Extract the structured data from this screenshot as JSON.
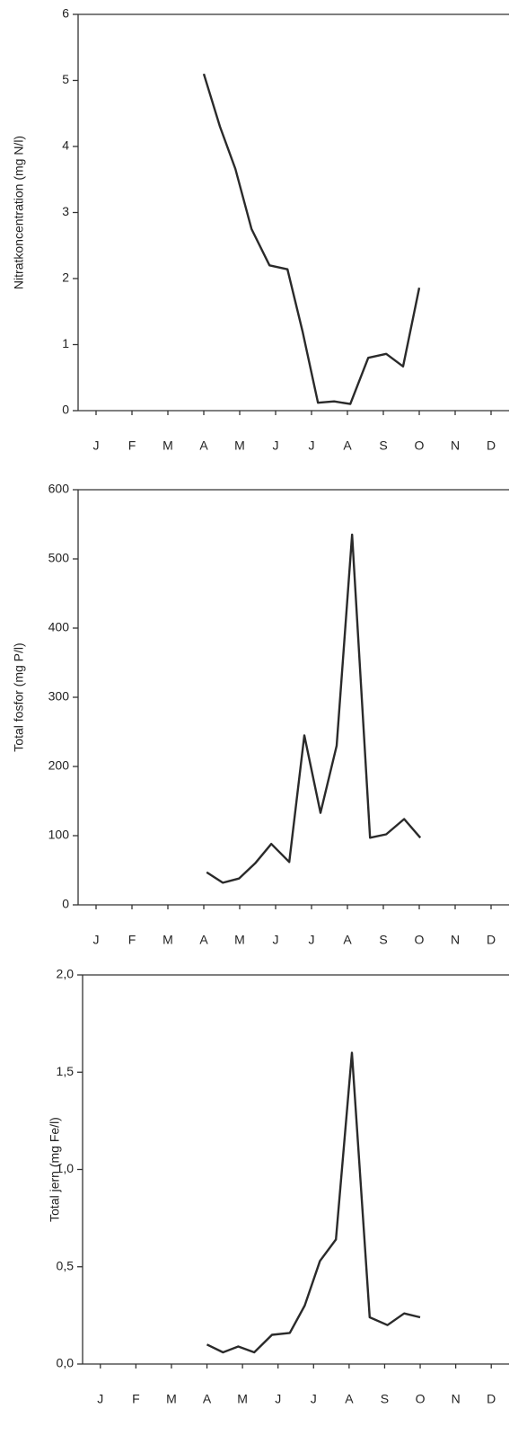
{
  "chart_data": [
    {
      "type": "line",
      "ylabel": "Nitratkoncentration (mg N/l)",
      "color": "#2a2a2a",
      "x": [
        3.5,
        3.95,
        4.38,
        4.83,
        5.33,
        5.83,
        6.25,
        6.68,
        7.13,
        7.58,
        8.08,
        8.58,
        9.05,
        9.5
      ],
      "values": [
        5.1,
        4.3,
        3.66,
        2.75,
        2.2,
        2.14,
        1.2,
        0.12,
        0.14,
        0.1,
        0.8,
        0.86,
        0.67,
        1.86
      ],
      "xlim": [
        0,
        12
      ],
      "xticks": [
        {
          "value": 0.5,
          "label": "J"
        },
        {
          "value": 1.5,
          "label": "F"
        },
        {
          "value": 2.5,
          "label": "M"
        },
        {
          "value": 3.5,
          "label": "A"
        },
        {
          "value": 4.5,
          "label": "M"
        },
        {
          "value": 5.5,
          "label": "J"
        },
        {
          "value": 6.5,
          "label": "J"
        },
        {
          "value": 7.5,
          "label": "A"
        },
        {
          "value": 8.5,
          "label": "S"
        },
        {
          "value": 9.5,
          "label": "O"
        },
        {
          "value": 10.5,
          "label": "N"
        },
        {
          "value": 11.5,
          "label": "D"
        }
      ],
      "ylim": [
        0,
        6
      ],
      "yticks": [
        0,
        1,
        2,
        3,
        4,
        5,
        6
      ]
    },
    {
      "type": "line",
      "ylabel": "Total fosfor (mg P/l)",
      "color": "#2a2a2a",
      "x": [
        3.58,
        4.03,
        4.48,
        4.93,
        5.38,
        5.88,
        6.3,
        6.75,
        7.2,
        7.63,
        8.13,
        8.58,
        9.08,
        9.53
      ],
      "values": [
        47,
        32,
        38,
        60,
        88,
        62,
        245,
        133,
        230,
        535,
        97,
        102,
        124,
        97
      ],
      "xlim": [
        0,
        12
      ],
      "xticks": [
        {
          "value": 0.5,
          "label": "J"
        },
        {
          "value": 1.5,
          "label": "F"
        },
        {
          "value": 2.5,
          "label": "M"
        },
        {
          "value": 3.5,
          "label": "A"
        },
        {
          "value": 4.5,
          "label": "M"
        },
        {
          "value": 5.5,
          "label": "J"
        },
        {
          "value": 6.5,
          "label": "J"
        },
        {
          "value": 7.5,
          "label": "A"
        },
        {
          "value": 8.5,
          "label": "S"
        },
        {
          "value": 9.5,
          "label": "O"
        },
        {
          "value": 10.5,
          "label": "N"
        },
        {
          "value": 11.5,
          "label": "D"
        }
      ],
      "ylim": [
        0,
        600
      ],
      "yticks": [
        0,
        100,
        200,
        300,
        400,
        500,
        600
      ]
    },
    {
      "type": "line",
      "ylabel": "Total jern (mg Fe/l)",
      "color": "#2a2a2a",
      "x": [
        3.5,
        3.95,
        4.38,
        4.83,
        5.33,
        5.83,
        6.25,
        6.68,
        7.13,
        7.58,
        8.08,
        8.58,
        9.05,
        9.5
      ],
      "values": [
        0.1,
        0.06,
        0.09,
        0.06,
        0.15,
        0.16,
        0.3,
        0.53,
        0.64,
        1.6,
        0.24,
        0.2,
        0.26,
        0.24
      ],
      "xlim": [
        0,
        12
      ],
      "xticks": [
        {
          "value": 0.5,
          "label": "J"
        },
        {
          "value": 1.5,
          "label": "F"
        },
        {
          "value": 2.5,
          "label": "M"
        },
        {
          "value": 3.5,
          "label": "A"
        },
        {
          "value": 4.5,
          "label": "M"
        },
        {
          "value": 5.5,
          "label": "J"
        },
        {
          "value": 6.5,
          "label": "J"
        },
        {
          "value": 7.5,
          "label": "A"
        },
        {
          "value": 8.5,
          "label": "S"
        },
        {
          "value": 9.5,
          "label": "O"
        },
        {
          "value": 10.5,
          "label": "N"
        },
        {
          "value": 11.5,
          "label": "D"
        }
      ],
      "ylim": [
        0,
        2
      ],
      "yticks": [
        {
          "value": 0,
          "label": "0,0"
        },
        {
          "value": 0.5,
          "label": "0,5"
        },
        {
          "value": 1,
          "label": "1,0"
        },
        {
          "value": 1.5,
          "label": "1,5"
        },
        {
          "value": 2,
          "label": "2,0"
        }
      ]
    }
  ]
}
